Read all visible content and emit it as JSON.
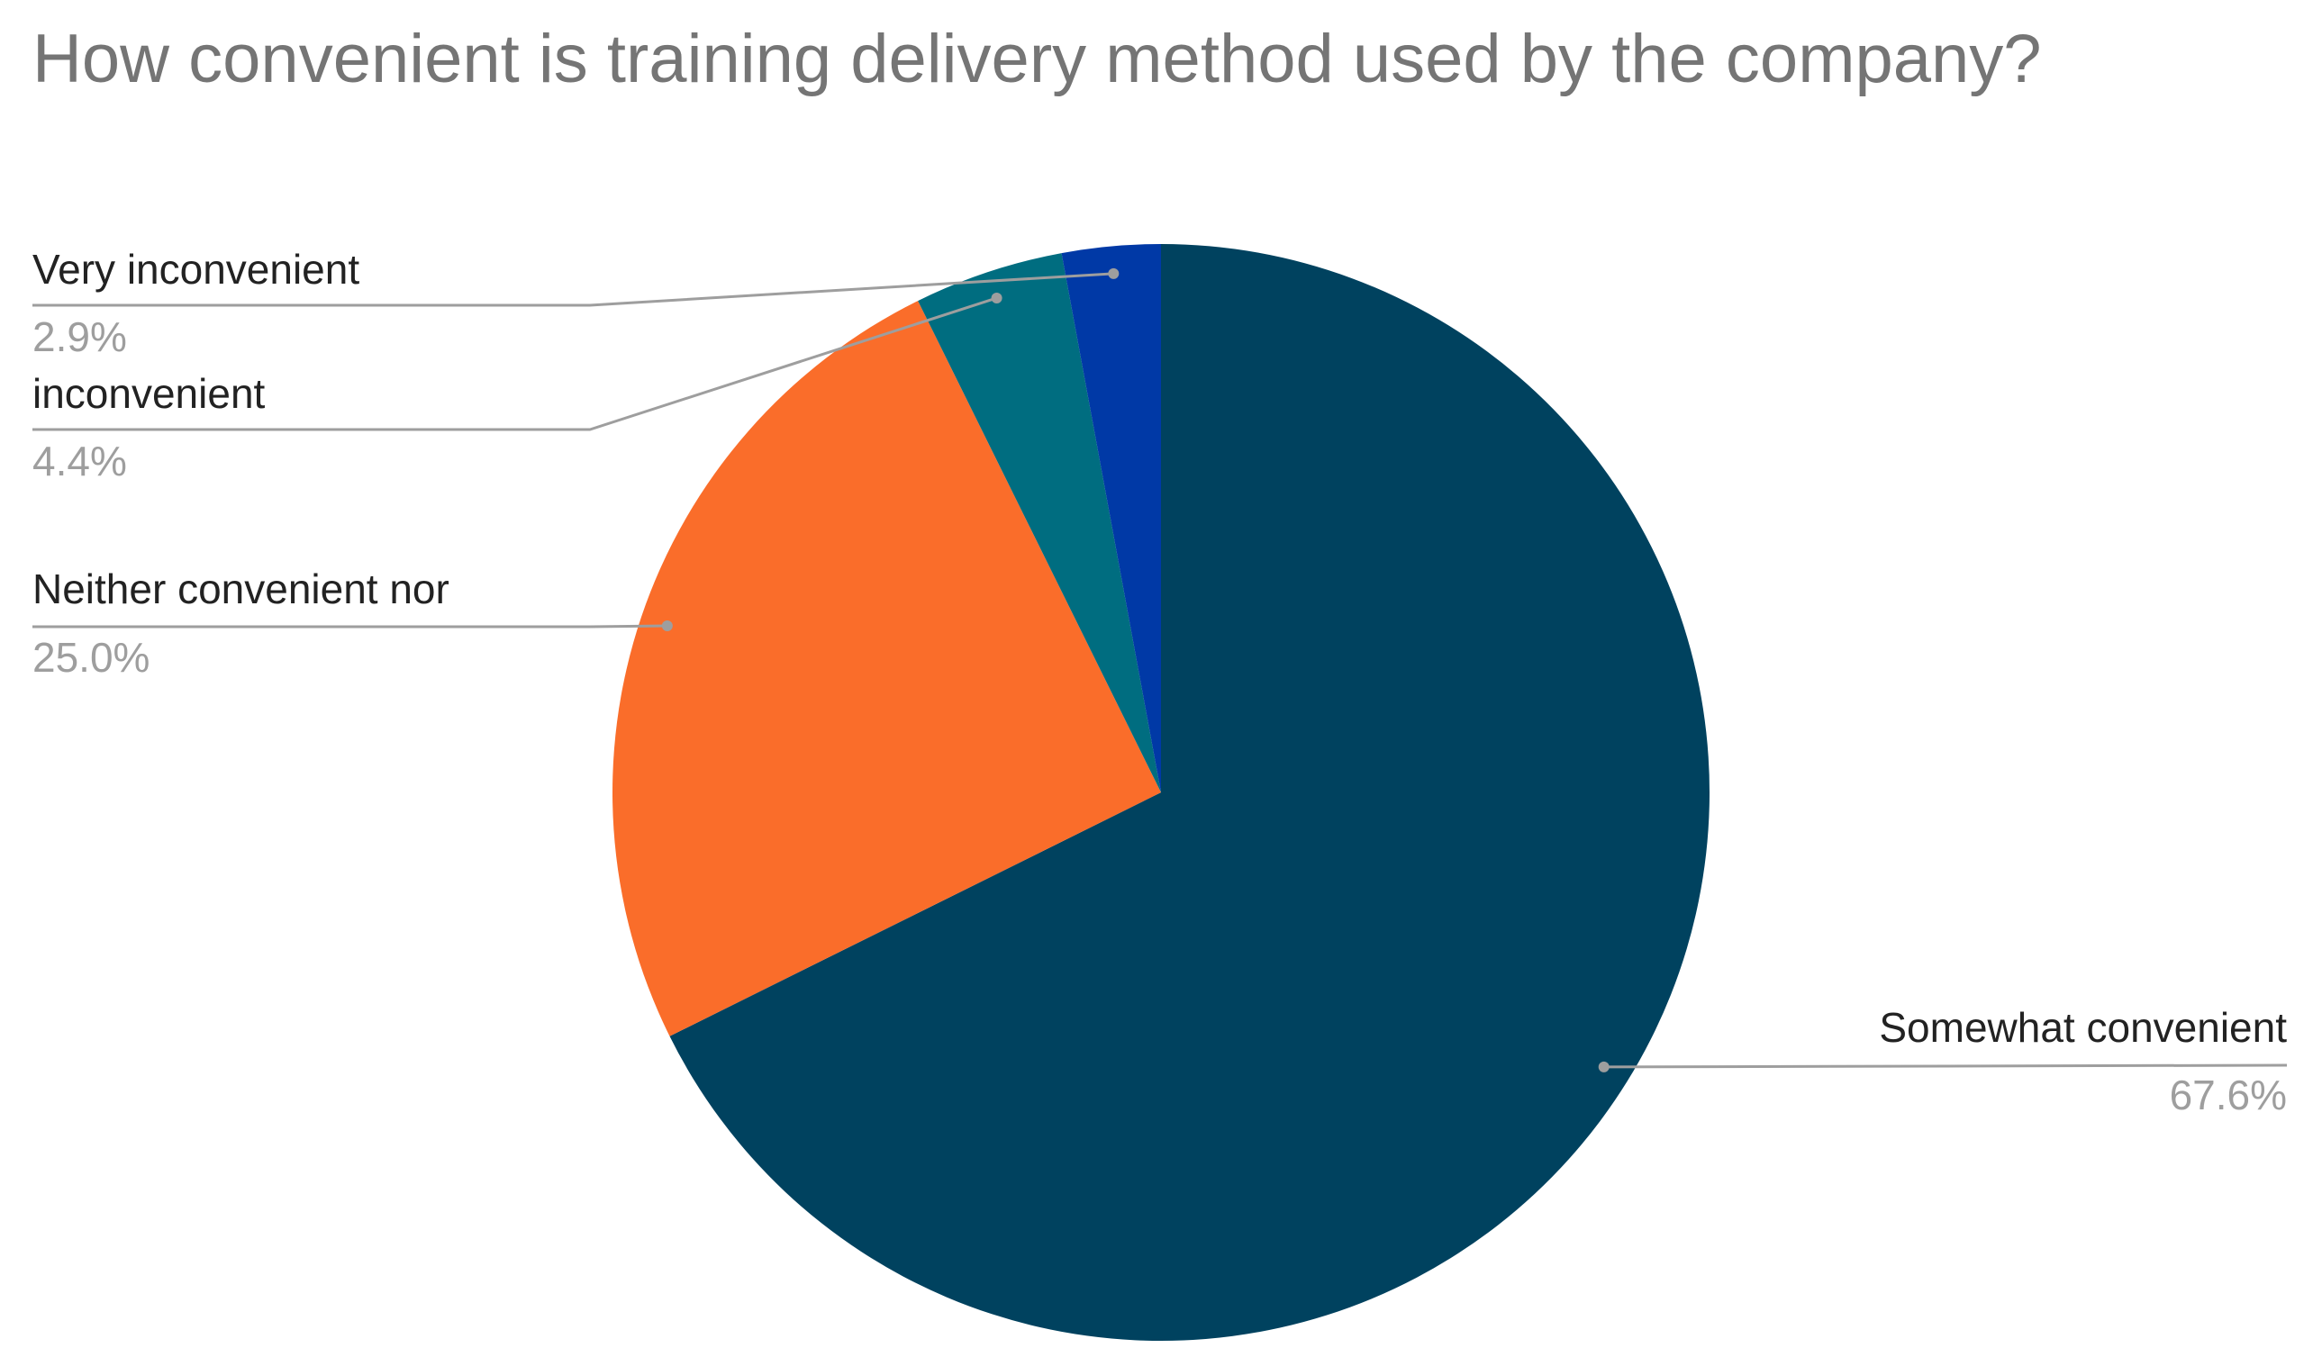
{
  "chart_data": {
    "type": "pie",
    "title": "How convenient is training delivery method used by the company?",
    "categories": [
      "Somewhat convenient",
      "Neither convenient nor",
      "inconvenient",
      "Very inconvenient"
    ],
    "values": [
      67.6,
      25.0,
      4.4,
      2.9
    ],
    "value_labels": [
      "67.6%",
      "25.0%",
      "4.4%",
      "2.9%"
    ],
    "colors": [
      "#00425f",
      "#fa6d2a",
      "#006d80",
      "#0039a6"
    ]
  }
}
